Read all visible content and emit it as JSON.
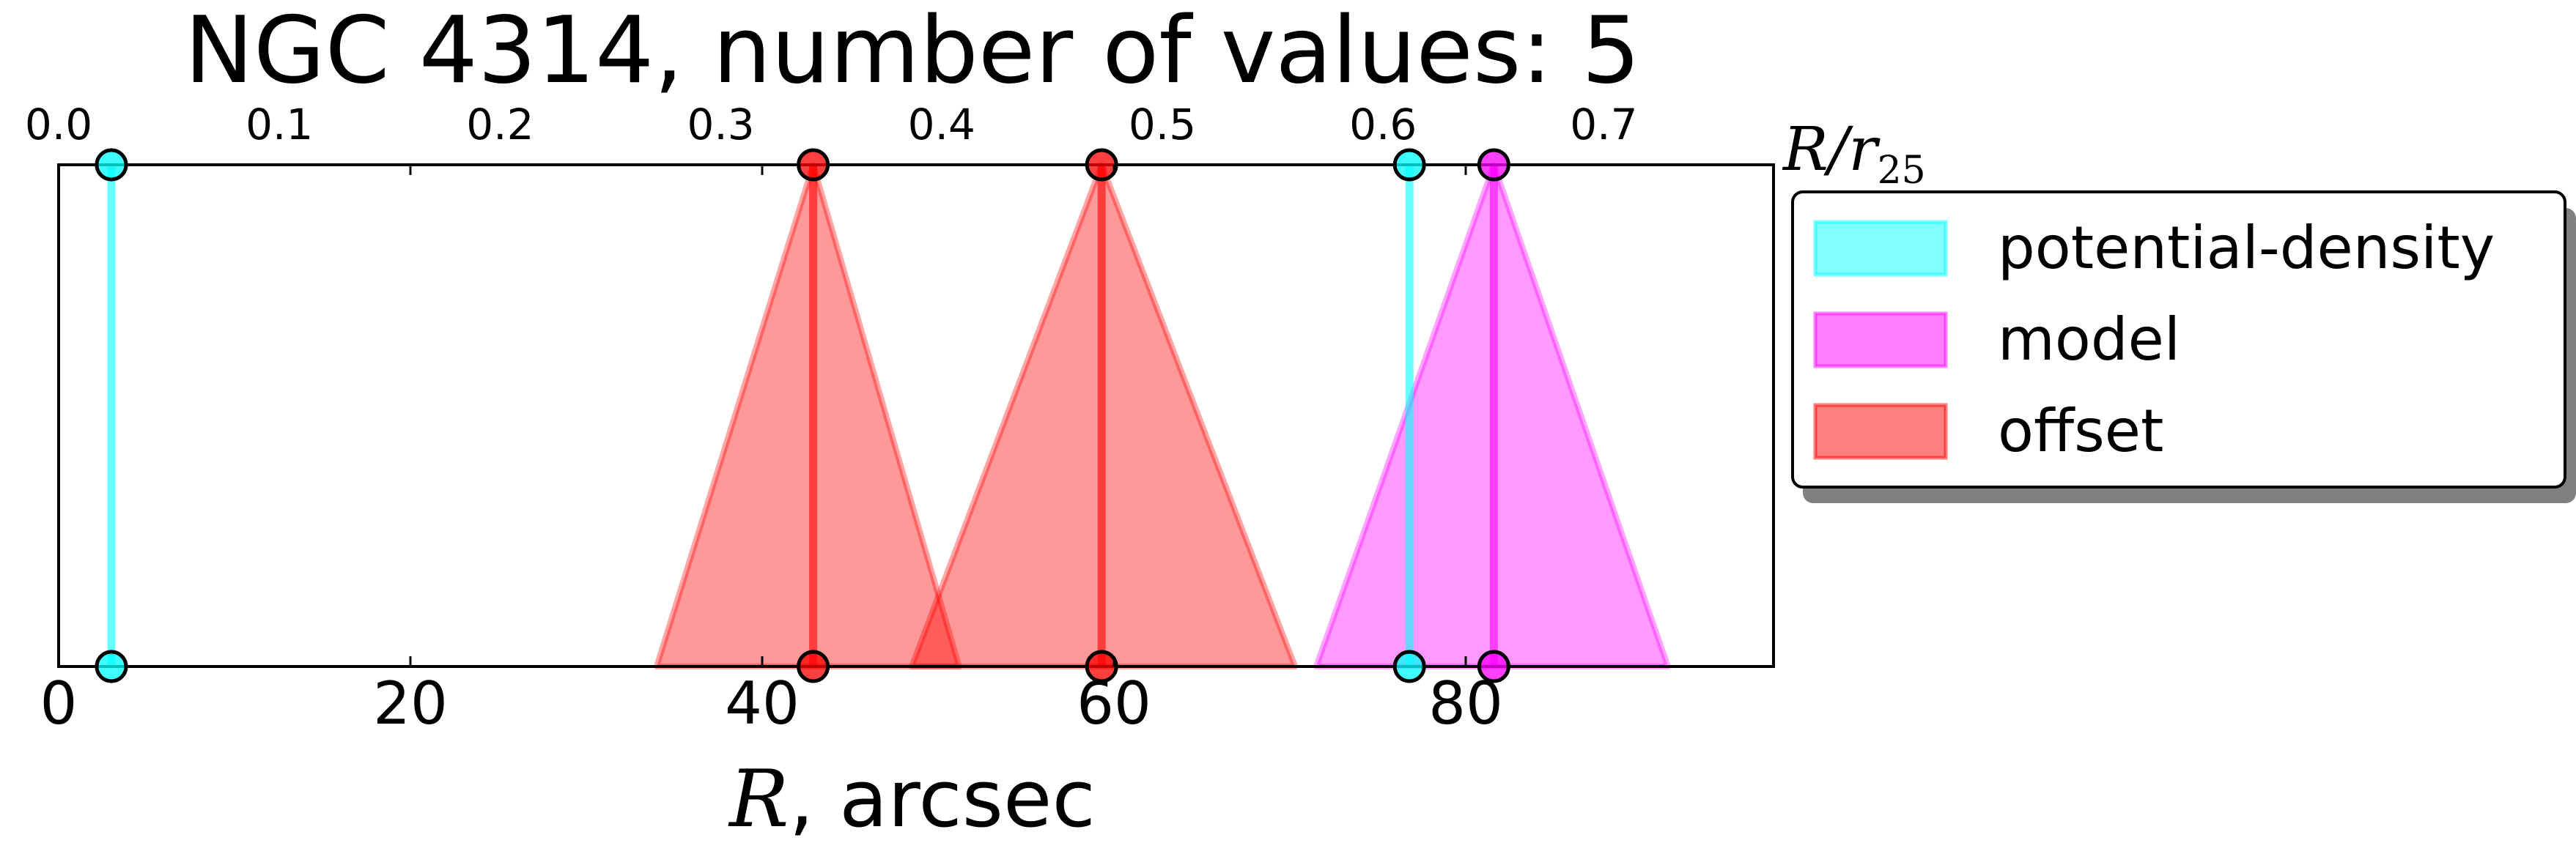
{
  "chart_data": {
    "type": "area",
    "title": "NGC 4314, number of values: 5",
    "xlabel_var": "R",
    "xlabel_unit": ", arcsec",
    "xlim": [
      0,
      97.5
    ],
    "xticks": [
      0,
      20,
      40,
      60,
      80
    ],
    "top_axis": {
      "label_main": "R/r",
      "label_sub": "25",
      "scale_arcsec_per_unit": 125.5,
      "ticks": [
        "0.0",
        "0.1",
        "0.2",
        "0.3",
        "0.4",
        "0.5",
        "0.6",
        "0.7"
      ]
    },
    "legend_position": "outside-right",
    "series": [
      {
        "name": "potential-density",
        "color": "#00ffff",
        "values": [
          3.0,
          76.8
        ]
      },
      {
        "name": "model",
        "color": "#ff00ff",
        "values": [
          81.6
        ]
      },
      {
        "name": "offset",
        "color": "#ff0000",
        "values": [
          42.9,
          59.3
        ]
      }
    ],
    "intervals": [
      {
        "series": "offset",
        "center": 42.9,
        "lo": 34.0,
        "hi": 51.2
      },
      {
        "series": "offset",
        "center": 59.3,
        "lo": 48.5,
        "hi": 70.3
      },
      {
        "series": "model",
        "center": 81.6,
        "lo": 71.5,
        "hi": 91.5
      }
    ]
  }
}
